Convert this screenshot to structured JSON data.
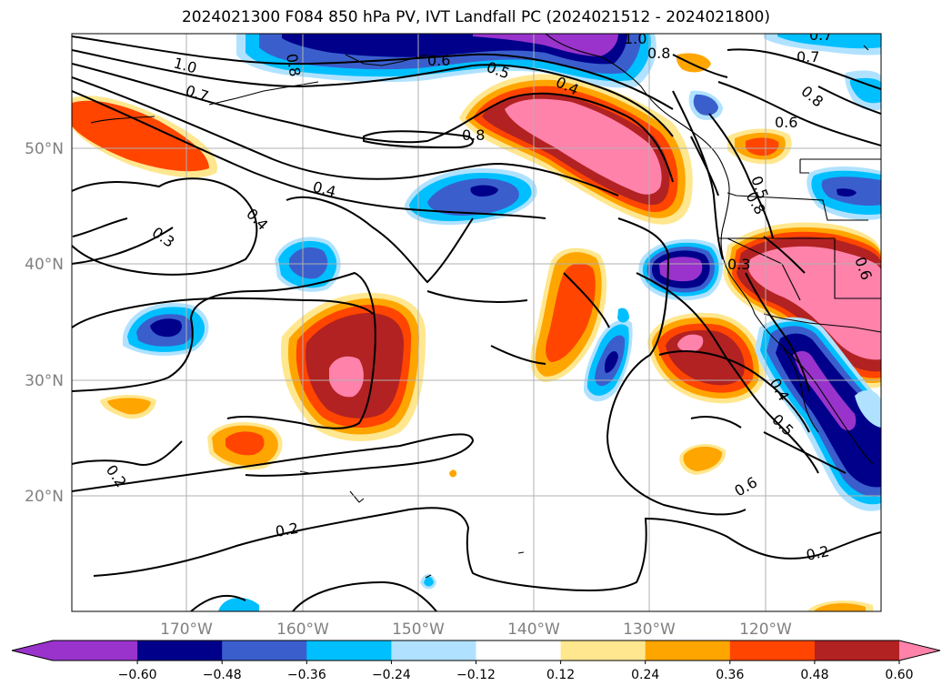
{
  "title": "2024021300 F084 850 hPa PV, IVT Landfall PC (2024021512 - 2024021800)",
  "lat_labels": [
    "50°N",
    "40°N",
    "30°N",
    "20°N"
  ],
  "lon_labels": [
    "170°W",
    "160°W",
    "150°W",
    "140°W",
    "130°W",
    "120°W"
  ],
  "contour_labels": [
    "1.0",
    "0.8",
    "0.7",
    "0.6",
    "0.5",
    "0.4",
    "0.8",
    "0.8",
    "0.7",
    "0.8",
    "0.6",
    "0.6",
    "0.7",
    "0.8",
    "1.0",
    "0.5",
    "0.4",
    "0.4",
    "0.3",
    "0.3",
    "0.4",
    "0.5",
    "0.6",
    "0.2",
    "0.2",
    "0.2"
  ],
  "colorbar": {
    "ticks": [
      "−0.60",
      "−0.48",
      "−0.36",
      "−0.24",
      "−0.12",
      "0.12",
      "0.24",
      "0.36",
      "0.48",
      "0.60"
    ],
    "colors": [
      "#9933cc",
      "#00008b",
      "#3a5fcd",
      "#00bfff",
      "#b0e2ff",
      "#ffffff",
      "#ffe78f",
      "#ffa500",
      "#ff4500",
      "#b22222",
      "#ff82ab",
      "#ff82ab"
    ]
  },
  "colors": {
    "purple": "#9933cc",
    "navy": "#00008b",
    "royal": "#3a5fcd",
    "sky": "#00bfff",
    "pale_blue": "#b0e2ff",
    "pale_yellow": "#ffe78f",
    "orange": "#ffa500",
    "red_orange": "#ff4500",
    "firebrick": "#b22222",
    "pink": "#ff82ab"
  }
}
